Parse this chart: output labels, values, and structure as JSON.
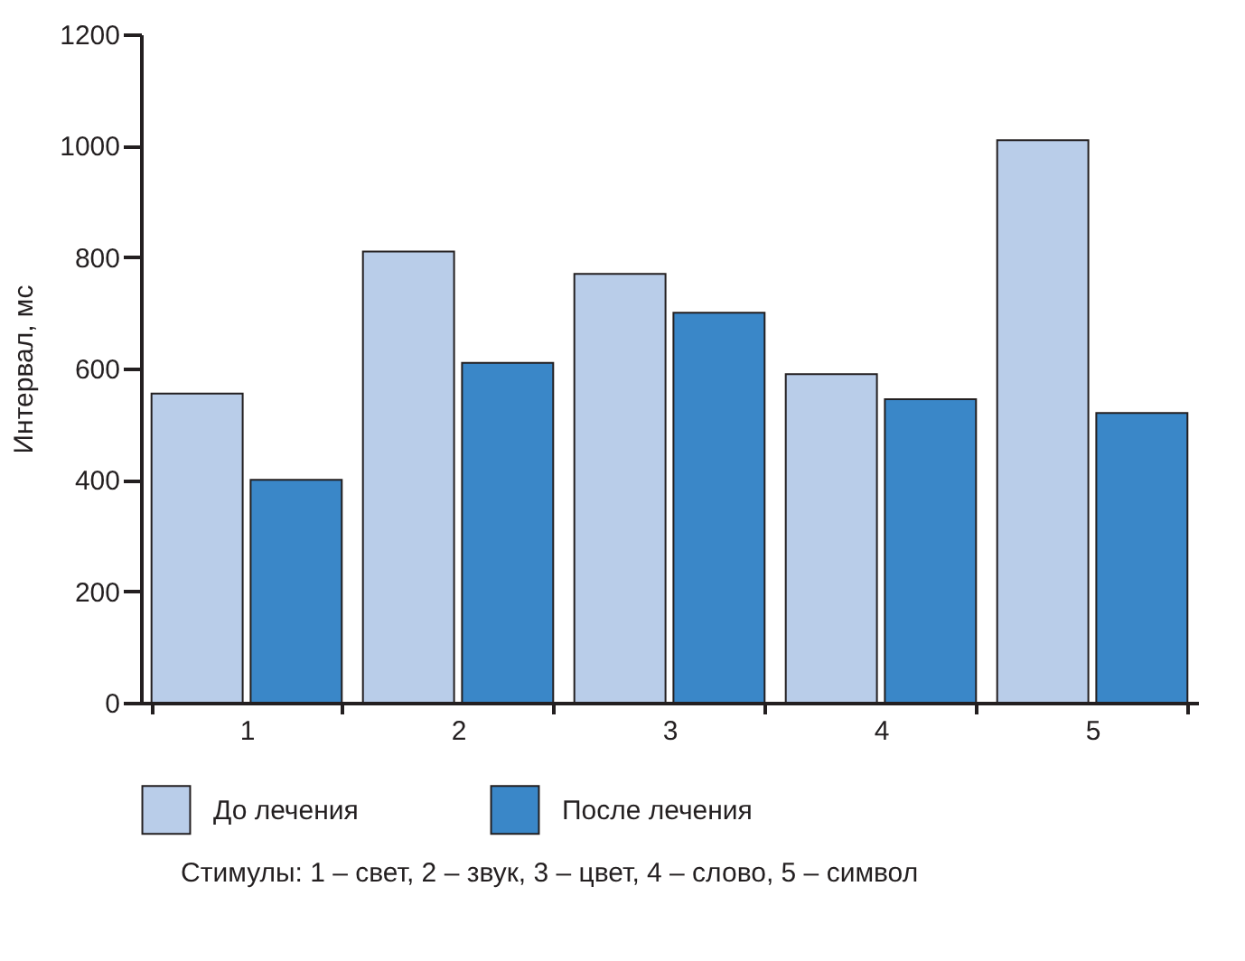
{
  "chart_data": {
    "type": "bar",
    "ylabel": "Интервал, мс",
    "categories": [
      "1",
      "2",
      "3",
      "4",
      "5"
    ],
    "series": [
      {
        "name": "До лечения",
        "color": "#b9cde9",
        "values": [
          555,
          810,
          770,
          590,
          1010
        ]
      },
      {
        "name": "После лечения",
        "color": "#3a87c8",
        "values": [
          400,
          610,
          700,
          545,
          520
        ]
      }
    ],
    "ylim": [
      0,
      1200
    ],
    "yticks": [
      0,
      200,
      400,
      600,
      800,
      1000,
      1200
    ],
    "grid": false,
    "legend": "bottom",
    "annotations": [
      "Стимулы: 1 – свет, 2 – звук, 3 – цвет, 4 – слово, 5 – символ"
    ]
  }
}
